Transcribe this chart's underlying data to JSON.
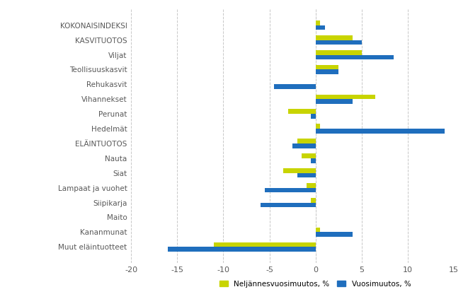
{
  "categories": [
    "KOKONAISINDEKSI",
    "KASVITUOTOS",
    "Viljat",
    "Teollisuuskasvit",
    "Rehukasvit",
    "Vihannekset",
    "Perunat",
    "Hedelmät",
    "ELÄINTUOTOS",
    "Nauta",
    "Siat",
    "Lampaat ja vuohet",
    "Siipikarja",
    "Maito",
    "Kananmunat",
    "Muut eläintuotteet"
  ],
  "neljannes": [
    0.5,
    4.0,
    5.0,
    2.5,
    0.0,
    6.5,
    -3.0,
    0.5,
    -2.0,
    -1.5,
    -3.5,
    -1.0,
    -0.5,
    0.0,
    0.5,
    -11.0
  ],
  "vuosi": [
    1.0,
    5.0,
    8.5,
    2.5,
    -4.5,
    4.0,
    -0.5,
    14.0,
    -2.5,
    -0.5,
    -2.0,
    -5.5,
    -6.0,
    0.0,
    4.0,
    -16.0
  ],
  "color_neljannes": "#c8d400",
  "color_vuosi": "#1f6ebd",
  "xlim": [
    -20,
    15
  ],
  "xticks": [
    -20,
    -15,
    -10,
    -5,
    0,
    5,
    10,
    15
  ],
  "xtick_labels": [
    "-20",
    "-15",
    "-10",
    "-5",
    "0",
    "5",
    "10",
    "15"
  ],
  "legend_neljannes": "Neljännesvuosimuutos, %",
  "legend_vuosi": "Vuosimuutos, %",
  "bar_height": 0.32,
  "figure_width": 6.61,
  "figure_height": 4.23,
  "dpi": 100,
  "grid_color": "#c8c8c8",
  "background_color": "#ffffff",
  "text_color": "#595959"
}
